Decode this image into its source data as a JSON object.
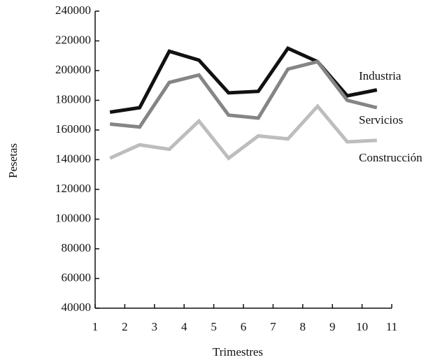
{
  "chart_data": {
    "type": "line",
    "x_label": "Trimestres",
    "y_label": "Pesetas",
    "x": [
      1.5,
      2.5,
      3.5,
      4.5,
      5.5,
      6.5,
      7.5,
      8.5,
      9.5,
      10.5
    ],
    "series": [
      {
        "name": "Industria",
        "color": "#111111",
        "values": [
          172000,
          175000,
          213000,
          207000,
          185000,
          186000,
          215000,
          206000,
          183000,
          187000
        ]
      },
      {
        "name": "Servicios",
        "color": "#858585",
        "values": [
          164000,
          162000,
          192000,
          197000,
          170000,
          168000,
          201000,
          206000,
          180000,
          175000
        ]
      },
      {
        "name": "Construcción",
        "color": "#bdbdbd",
        "values": [
          141000,
          150000,
          147000,
          166000,
          141000,
          156000,
          154000,
          176000,
          152000,
          153000
        ]
      }
    ],
    "xlim": [
      1,
      11
    ],
    "xticks": [
      1,
      2,
      3,
      4,
      5,
      6,
      7,
      8,
      9,
      10,
      11
    ],
    "ylim": [
      40000,
      240000
    ],
    "yticks": [
      40000,
      60000,
      80000,
      100000,
      120000,
      140000,
      160000,
      180000,
      200000,
      220000,
      240000
    ],
    "grid": false
  }
}
